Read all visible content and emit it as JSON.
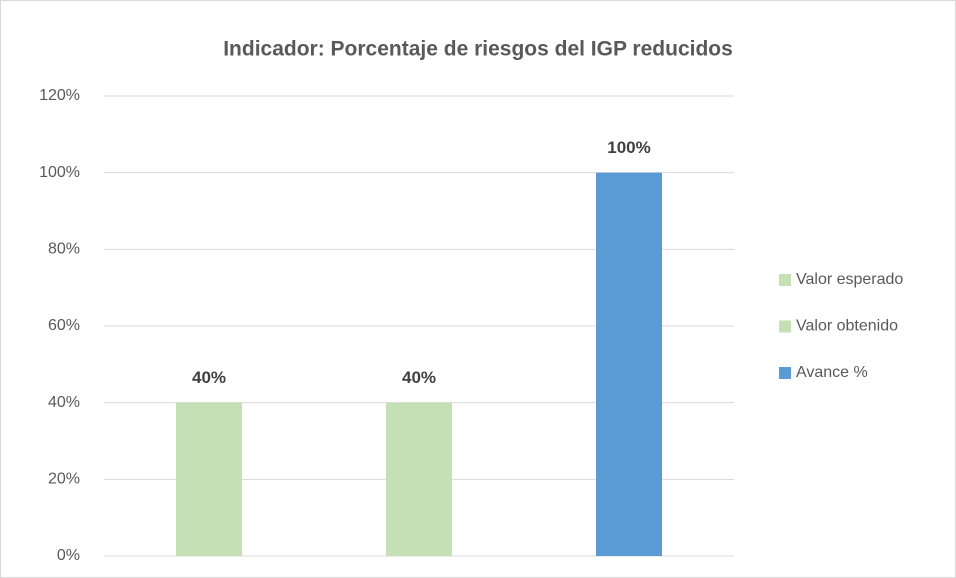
{
  "chart_data": {
    "type": "bar",
    "title": "Indicador: Porcentaje de riesgos del IGP reducidos",
    "categories": [
      null,
      null,
      null
    ],
    "series": [
      {
        "name": "Valor esperado",
        "color": "#c5e0b4",
        "values": [
          40,
          null,
          null
        ],
        "value_labels": [
          "40%",
          null,
          null
        ]
      },
      {
        "name": "Valor obtenido",
        "color": "#c5e0b4",
        "values": [
          null,
          40,
          null
        ],
        "value_labels": [
          null,
          "40%",
          null
        ]
      },
      {
        "name": "Avance %",
        "color": "#5b9bd5",
        "values": [
          null,
          null,
          100
        ],
        "value_labels": [
          null,
          null,
          "100%"
        ]
      }
    ],
    "ylim": [
      0,
      120
    ],
    "yticks": [
      {
        "value": 0,
        "label": "0%"
      },
      {
        "value": 20,
        "label": "20%"
      },
      {
        "value": 40,
        "label": "40%"
      },
      {
        "value": 60,
        "label": "60%"
      },
      {
        "value": 80,
        "label": "80%"
      },
      {
        "value": 100,
        "label": "100%"
      },
      {
        "value": 120,
        "label": "120%"
      }
    ],
    "grid": true,
    "legend": "right"
  }
}
